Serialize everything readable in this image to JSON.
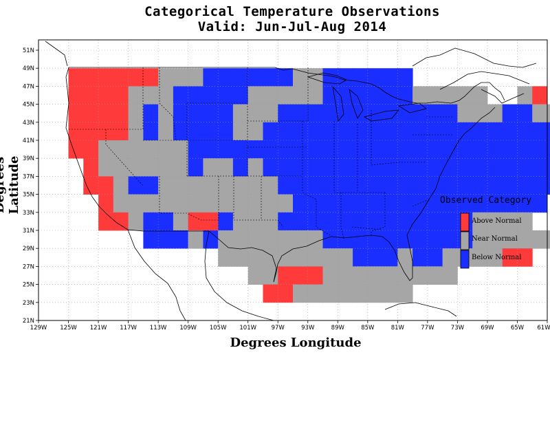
{
  "chart_data": {
    "type": "heatmap",
    "title": "Categorical Temperature Observations",
    "subtitle": "Valid: Jun-Jul-Aug 2014",
    "xlabel": "Degrees Longitude",
    "ylabel": "Degrees Latitude",
    "xlim": [
      -129,
      -61
    ],
    "ylim": [
      21,
      52
    ],
    "x_ticks": [
      "129W",
      "125W",
      "121W",
      "117W",
      "113W",
      "109W",
      "105W",
      "101W",
      "97W",
      "93W",
      "89W",
      "85W",
      "81W",
      "77W",
      "73W",
      "69W",
      "65W",
      "61W"
    ],
    "y_ticks": [
      "21N",
      "23N",
      "25N",
      "27N",
      "29N",
      "31N",
      "33N",
      "35N",
      "37N",
      "39N",
      "41N",
      "43N",
      "45N",
      "47N",
      "49N",
      "51N"
    ],
    "grid": true,
    "legend_title": "Observed Category",
    "legend_position": "right",
    "categories": [
      {
        "key": "A",
        "label": "Above Normal",
        "color": "#ff3a3a"
      },
      {
        "key": "N",
        "label": "Near Normal",
        "color": "#a6a6a6"
      },
      {
        "key": "B",
        "label": "Below Normal",
        "color": "#1a2eff"
      }
    ],
    "cell_size_deg": 2,
    "grid_cells": [
      {
        "lat_north": 49,
        "lon_west": -125,
        "values": "AAAAAANNNBBBBBBNNBBBBBB"
      },
      {
        "lat_north": 47,
        "lon_west": -125,
        "values": "AAAANNNBBBBBNNNNNBBBBBBNNNNN..NA"
      },
      {
        "lat_north": 45,
        "lon_west": -125,
        "values": "AAAANBNBBBBNNNBBBBBBBBBBBBNNNBBNNA"
      },
      {
        "lat_north": 43,
        "lon_west": -125,
        "values": "AAAANBNBBBBNNBBBBBBBBBBBBBBBBBBBBNNN"
      },
      {
        "lat_north": 41,
        "lon_west": -125,
        "values": "AANNNNNNBBBBBBBBBBBBBBBBBBBBBBBBBN"
      },
      {
        "lat_north": 39,
        "lon_west": -123,
        "values": "ANNNNNNBNNBNBBBBBBBBBBBBBBBBBBBB"
      },
      {
        "lat_north": 37,
        "lon_west": -123,
        "values": "AANBBNNNNNNNNBBBBBBBBBBBBBBBBBBB"
      },
      {
        "lat_north": 35,
        "lon_west": -121,
        "values": "ANNNNNNNNNNNNBBBBBBBBBBBBBBBBB"
      },
      {
        "lat_north": 33,
        "lon_west": -121,
        "values": "AANBBNAABNNNBBBBBBBBBBBBBNNNN"
      },
      {
        "lat_north": 31,
        "lon_west": -115,
        "values": "BBBNBNNNNNNNBBBBBBBBBBNNNNNN"
      },
      {
        "lat_north": 29,
        "lon_west": -105,
        "values": "NNNNNNNNNBBBNBBNNNNAA"
      },
      {
        "lat_north": 27,
        "lon_west": -101,
        "values": "NNAAANNNNNNNNN"
      },
      {
        "lat_north": 25,
        "lon_west": -99,
        "values": "AANNNNNNNN"
      }
    ]
  }
}
